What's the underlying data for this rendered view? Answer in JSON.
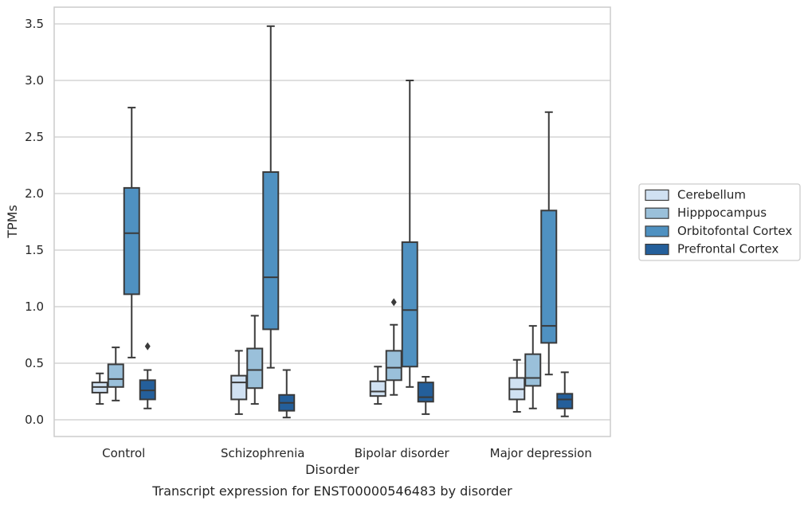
{
  "chart_data": {
    "type": "boxplot",
    "title": "",
    "caption": "Transcript expression for ENST00000546483 by disorder",
    "xlabel": "Disorder",
    "ylabel": "TPMs",
    "ylim": [
      -0.15,
      3.65
    ],
    "yticks": [
      0.0,
      0.5,
      1.0,
      1.5,
      2.0,
      2.5,
      3.0,
      3.5
    ],
    "ytick_labels": [
      "0.0",
      "0.5",
      "1.0",
      "1.5",
      "2.0",
      "2.5",
      "3.0",
      "3.5"
    ],
    "grid": "horizontal",
    "legend_position": "right",
    "categories": [
      "Control",
      "Schizophrenia",
      "Bipolar disorder",
      "Major depression"
    ],
    "series": [
      {
        "name": "Cerebellum",
        "color": "#d0e1f2",
        "boxes": [
          {
            "whislo": 0.14,
            "q1": 0.24,
            "med": 0.29,
            "q3": 0.33,
            "whishi": 0.41,
            "fliers": []
          },
          {
            "whislo": 0.05,
            "q1": 0.18,
            "med": 0.33,
            "q3": 0.39,
            "whishi": 0.61,
            "fliers": []
          },
          {
            "whislo": 0.14,
            "q1": 0.21,
            "med": 0.25,
            "q3": 0.34,
            "whishi": 0.47,
            "fliers": []
          },
          {
            "whislo": 0.07,
            "q1": 0.18,
            "med": 0.27,
            "q3": 0.37,
            "whishi": 0.53,
            "fliers": []
          }
        ]
      },
      {
        "name": "Hipppocampus",
        "color": "#9ac0da",
        "boxes": [
          {
            "whislo": 0.17,
            "q1": 0.29,
            "med": 0.36,
            "q3": 0.49,
            "whishi": 0.64,
            "fliers": []
          },
          {
            "whislo": 0.14,
            "q1": 0.28,
            "med": 0.44,
            "q3": 0.63,
            "whishi": 0.92,
            "fliers": []
          },
          {
            "whislo": 0.22,
            "q1": 0.35,
            "med": 0.46,
            "q3": 0.61,
            "whishi": 0.84,
            "fliers": [
              1.04
            ]
          },
          {
            "whislo": 0.1,
            "q1": 0.3,
            "med": 0.37,
            "q3": 0.58,
            "whishi": 0.83,
            "fliers": []
          }
        ]
      },
      {
        "name": "Orbitofontal Cortex",
        "color": "#4f91c1",
        "boxes": [
          {
            "whislo": 0.55,
            "q1": 1.11,
            "med": 1.65,
            "q3": 2.05,
            "whishi": 2.76,
            "fliers": []
          },
          {
            "whislo": 0.46,
            "q1": 0.8,
            "med": 1.26,
            "q3": 2.19,
            "whishi": 3.48,
            "fliers": []
          },
          {
            "whislo": 0.29,
            "q1": 0.47,
            "med": 0.97,
            "q3": 1.57,
            "whishi": 3.0,
            "fliers": []
          },
          {
            "whislo": 0.4,
            "q1": 0.68,
            "med": 0.83,
            "q3": 1.85,
            "whishi": 2.72,
            "fliers": []
          }
        ]
      },
      {
        "name": "Prefrontal Cortex",
        "color": "#245f9b",
        "boxes": [
          {
            "whislo": 0.1,
            "q1": 0.18,
            "med": 0.26,
            "q3": 0.35,
            "whishi": 0.44,
            "fliers": [
              0.65
            ]
          },
          {
            "whislo": 0.02,
            "q1": 0.08,
            "med": 0.15,
            "q3": 0.22,
            "whishi": 0.44,
            "fliers": []
          },
          {
            "whislo": 0.05,
            "q1": 0.16,
            "med": 0.2,
            "q3": 0.33,
            "whishi": 0.38,
            "fliers": []
          },
          {
            "whislo": 0.03,
            "q1": 0.1,
            "med": 0.18,
            "q3": 0.23,
            "whishi": 0.42,
            "fliers": []
          }
        ]
      }
    ]
  }
}
